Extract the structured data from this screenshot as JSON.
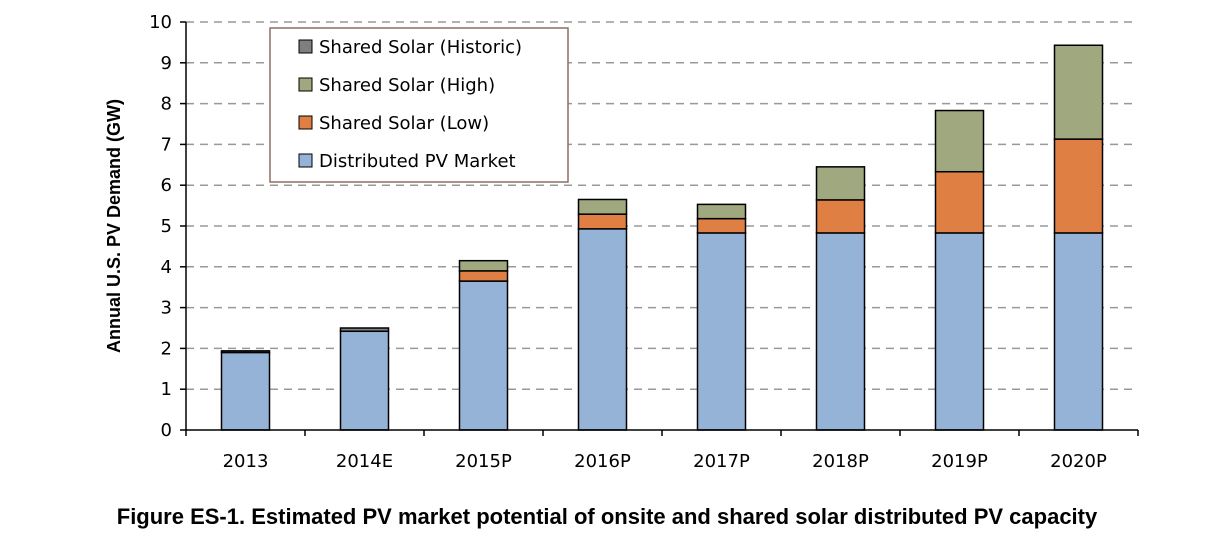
{
  "caption": "Figure ES-1. Estimated PV market potential of onsite and shared solar distributed PV capacity",
  "chart_data": {
    "type": "bar",
    "stacked": true,
    "ylabel": "Annual U.S. PV Demand (GW)",
    "xlabel": "",
    "ylim": [
      0,
      10
    ],
    "yticks": [
      0,
      1,
      2,
      3,
      4,
      5,
      6,
      7,
      8,
      9,
      10
    ],
    "grid": true,
    "legend_position": "top-left",
    "categories": [
      "2013",
      "2014E",
      "2015P",
      "2016P",
      "2017P",
      "2018P",
      "2019P",
      "2020P"
    ],
    "series": [
      {
        "name": "Distributed PV Market",
        "color": "#95b3d7",
        "values": [
          1.9,
          2.42,
          3.65,
          4.93,
          4.83,
          4.83,
          4.83,
          4.83
        ]
      },
      {
        "name": "Shared Solar (Low)",
        "color": "#e07f43",
        "values": [
          0,
          0,
          0.25,
          0.36,
          0.35,
          0.81,
          1.5,
          2.3
        ]
      },
      {
        "name": "Shared Solar (High)",
        "color": "#9fa87e",
        "values": [
          0,
          0,
          0.25,
          0.36,
          0.35,
          0.81,
          1.5,
          2.3
        ]
      },
      {
        "name": "Shared Solar (Historic)",
        "color": "#7f7f7f",
        "values": [
          0.04,
          0.08,
          0,
          0,
          0,
          0,
          0,
          0
        ]
      }
    ],
    "legend_order": [
      "Shared Solar (Historic)",
      "Shared Solar (High)",
      "Shared Solar (Low)",
      "Distributed PV Market"
    ]
  }
}
